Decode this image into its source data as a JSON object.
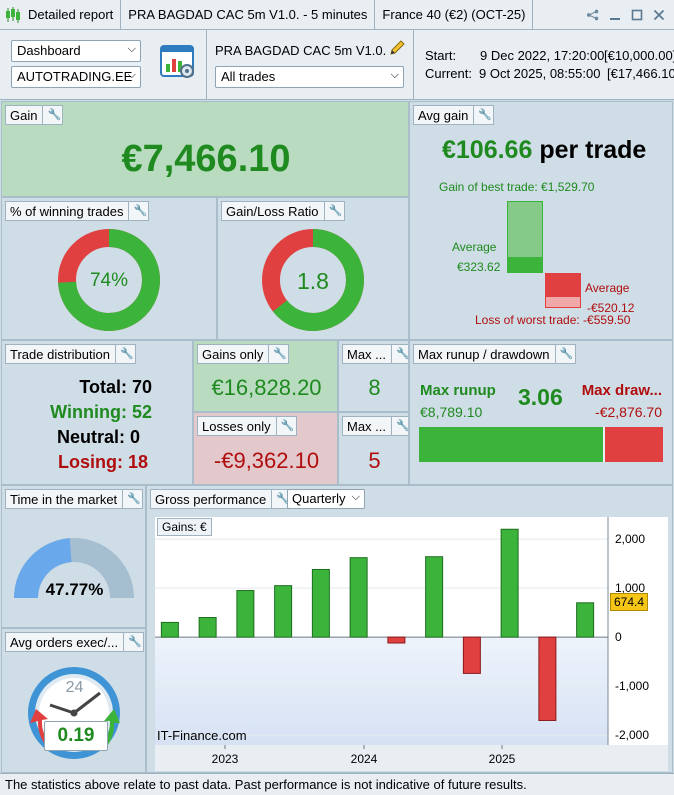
{
  "titlebar": {
    "report": "Detailed report",
    "strategy": "PRA BAGDAD CAC 5m V1.0. - 5 minutes",
    "instrument": "France 40 (€2) (OCT-25)"
  },
  "toolbar": {
    "view_select": "Dashboard",
    "account_select": "AUTOTRADING.EE",
    "strategy_name": "PRA BAGDAD CAC 5m V1.0.",
    "trades_select": "All trades",
    "start_label": "Start:",
    "start_value": "9 Dec 2022, 17:20:00",
    "start_capital": "[€10,000.00]",
    "current_label": "Current:",
    "current_value": "9 Oct 2025, 08:55:00",
    "current_capital": "[€17,466.10]"
  },
  "gain": {
    "title": "Gain",
    "value": "€7,466.10"
  },
  "avg_gain": {
    "title": "Avg gain",
    "value": "€106.66",
    "suffix": "per trade",
    "best_label": "Gain of best trade: €1,529.70",
    "avg_pos_label": "Average",
    "avg_pos_value": "€323.62",
    "avg_neg_label": "Average",
    "avg_neg_value": "-€520.12",
    "worst_label": "Loss of worst trade: -€559.50"
  },
  "winning_pct": {
    "title": "% of winning trades",
    "value": "74%",
    "fraction": 0.74
  },
  "gain_loss_ratio": {
    "title": "Gain/Loss Ratio",
    "value": "1.8",
    "fraction": 0.643
  },
  "trade_distribution": {
    "title": "Trade distribution",
    "total_label": "Total: 70",
    "winning_label": "Winning: 52",
    "neutral_label": "Neutral: 0",
    "losing_label": "Losing: 18"
  },
  "gains_only": {
    "title": "Gains only",
    "value": "€16,828.20"
  },
  "losses_only": {
    "title": "Losses only",
    "value": "-€9,362.10"
  },
  "max_consec_win": {
    "title": "Max ...",
    "value": "8"
  },
  "max_consec_loss": {
    "title": "Max ...",
    "value": "5"
  },
  "runup": {
    "title": "Max runup / drawdown",
    "runup_label": "Max runup",
    "runup_value": "€8,789.10",
    "ratio": "3.06",
    "drawdown_label": "Max draw...",
    "drawdown_value": "-€2,876.70",
    "runup_fraction": 0.753
  },
  "time_in_market": {
    "title": "Time in the market",
    "value": "47.77%",
    "fraction": 0.4777
  },
  "avg_orders": {
    "title": "Avg orders exec/...",
    "clock_label": "24",
    "value": "0.19"
  },
  "gross": {
    "title": "Gross performance",
    "period_select": "Quarterly",
    "legend_label": "Gains: €",
    "watermark": "IT-Finance.com",
    "last_value_label": "674.4"
  },
  "chart_data": {
    "type": "bar",
    "x_labels": [
      "2023",
      "2024",
      "2025"
    ],
    "y_ticks": [
      "2,000",
      "1,000",
      "0",
      "-1,000",
      "-2,000"
    ],
    "ylim": [
      -2200,
      2450
    ],
    "values": [
      300,
      400,
      950,
      1050,
      1380,
      1620,
      -120,
      1640,
      -740,
      2200,
      -1700,
      700
    ],
    "positive_color": "#3cb43c",
    "negative_color": "#e04040"
  },
  "footer": {
    "disclaimer": "The statistics above relate to past data. Past performance is not indicative of future results."
  }
}
